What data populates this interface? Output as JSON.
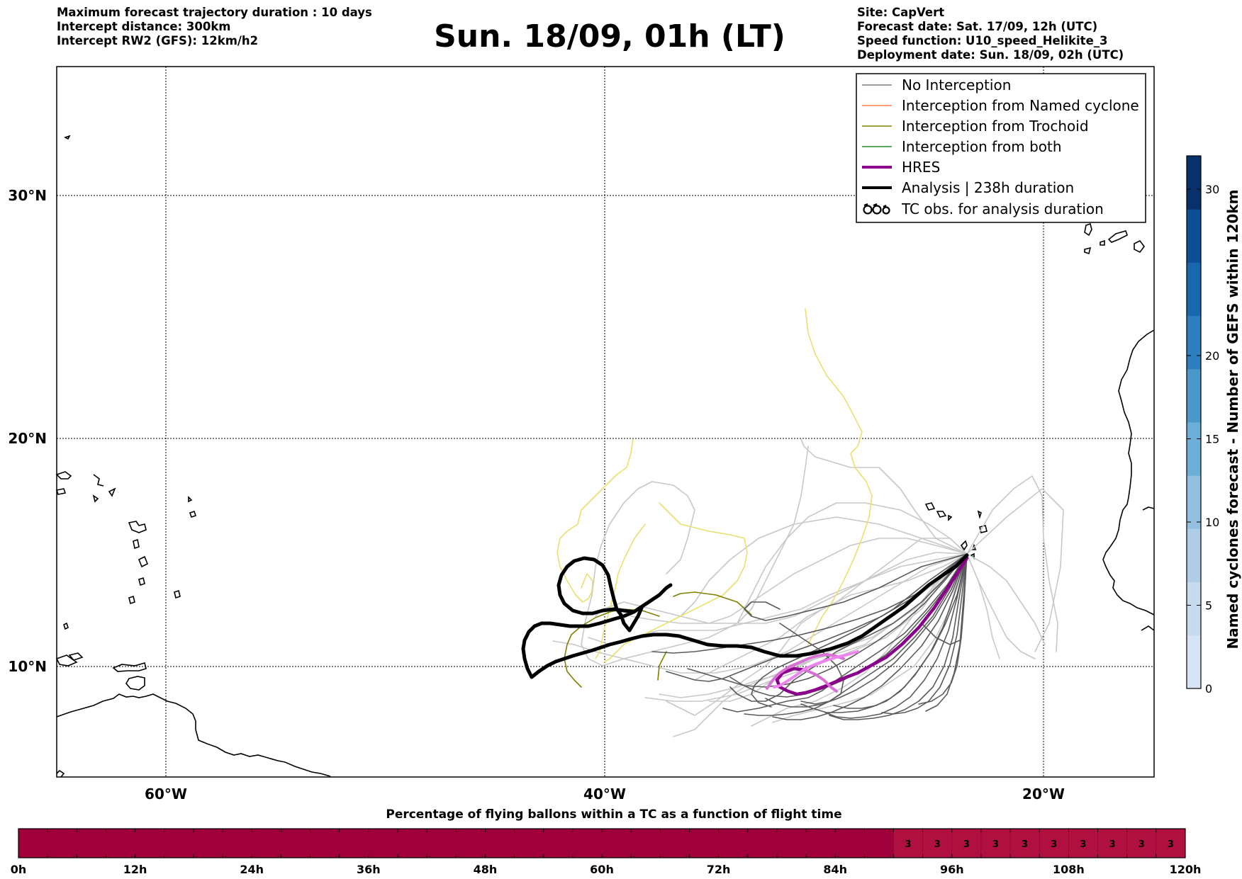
{
  "header_left": {
    "line1": "Maximum forecast trajectory duration : 10 days",
    "line2": "Intercept distance: 300km",
    "line3": "Intercept RW2 (GFS):  12km/h2"
  },
  "title": "Sun. 18/09, 01h (LT)",
  "header_right": {
    "site": "Site: CapVert",
    "forecast_date": "Forecast date: Sat. 17/09, 12h (UTC)",
    "speed_function": "Speed function: U10_speed_Helikite_3",
    "deployment_date": "Deployment date: Sun. 18/09, 02h (UTC)"
  },
  "map": {
    "lat_labels": [
      "30°N",
      "20°N",
      "10°N"
    ],
    "lon_labels": [
      "60°W",
      "40°W",
      "20°W"
    ],
    "lat_values": [
      30,
      20,
      10
    ],
    "lon_values": [
      -60,
      -40,
      -20
    ],
    "extent": {
      "lon_min": -65,
      "lon_max": -15,
      "lat_min": 5.4,
      "lat_max": 35.3
    },
    "release_site": {
      "lon": -23.0,
      "lat": 15.0
    }
  },
  "legend": {
    "items": [
      {
        "label": "No Interception",
        "color": "#808080",
        "style": "thin"
      },
      {
        "label": "Interception from Named cyclone",
        "color": "#ff7f50",
        "style": "thin"
      },
      {
        "label": "Interception from Trochoid",
        "color": "#808000",
        "style": "thin"
      },
      {
        "label": "Interception from both",
        "color": "#228b22",
        "style": "thin"
      },
      {
        "label": "HRES",
        "color": "#8b008b",
        "style": "thick"
      },
      {
        "label": "Analysis | 238h duration",
        "color": "#000000",
        "style": "thick"
      },
      {
        "label": "TC obs. for analysis duration",
        "color": "#000000",
        "style": "tc-symbol"
      }
    ]
  },
  "colorbar": {
    "label": "Named cyclones forecast - Number of GEFS within 120km",
    "ticks": [
      "0",
      "5",
      "10",
      "15",
      "20",
      "30"
    ],
    "tick_values": [
      0,
      5,
      10,
      15,
      20,
      30
    ],
    "range": [
      0,
      32
    ],
    "colors": [
      "#d6e4f5",
      "#c7dbef",
      "#b0cde7",
      "#94c1e0",
      "#6caed6",
      "#4a98c9",
      "#2e7fbd",
      "#1967ad",
      "#0d4f94",
      "#08306b"
    ]
  },
  "timeline": {
    "title": "Percentage of flying ballons within a TC as a function of flight time",
    "tick_labels": [
      "0h",
      "12h",
      "24h",
      "36h",
      "48h",
      "60h",
      "72h",
      "84h",
      "96h",
      "108h",
      "120h"
    ],
    "max_hours": 120,
    "base_color": "#a0003a",
    "highlight_color": "#b0103f",
    "cells": [
      {
        "start_h": 90,
        "value": "3"
      },
      {
        "start_h": 93,
        "value": "3"
      },
      {
        "start_h": 96,
        "value": "3"
      },
      {
        "start_h": 99,
        "value": "3"
      },
      {
        "start_h": 102,
        "value": "3"
      },
      {
        "start_h": 105,
        "value": "3"
      },
      {
        "start_h": 108,
        "value": "3"
      },
      {
        "start_h": 111,
        "value": "3"
      },
      {
        "start_h": 114,
        "value": "3"
      },
      {
        "start_h": 117,
        "value": "3"
      }
    ]
  }
}
